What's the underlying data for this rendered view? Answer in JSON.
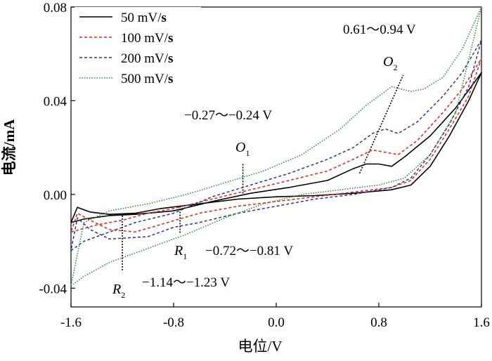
{
  "chart_data": {
    "type": "line",
    "title": "",
    "xlabel": "电位/V",
    "ylabel": "电流/mA",
    "xlim": [
      -1.6,
      1.6
    ],
    "ylim": [
      -0.048,
      0.08
    ],
    "x_ticks": [
      -1.6,
      -0.8,
      0.0,
      0.8,
      1.6
    ],
    "x_tick_labels": [
      "-1.6",
      "-0.8",
      "0.0",
      "0.8",
      "1.6"
    ],
    "y_ticks": [
      -0.04,
      0.0,
      0.04,
      0.08
    ],
    "y_tick_labels": [
      "-0.04",
      "0.00",
      "0.04",
      "0.08"
    ],
    "grid": false,
    "legend_position": "top-left",
    "series": [
      {
        "name": "50 mV/s",
        "color": "#000000",
        "dash": "solid",
        "points": [
          [
            -1.6,
            -0.012
          ],
          [
            -1.5,
            -0.0105
          ],
          [
            -1.3,
            -0.009
          ],
          [
            -1.1,
            -0.0085
          ],
          [
            -0.8,
            -0.007
          ],
          [
            -0.5,
            -0.003
          ],
          [
            -0.2,
            0.0005
          ],
          [
            0.1,
            0.003
          ],
          [
            0.4,
            0.006
          ],
          [
            0.6,
            0.011
          ],
          [
            0.7,
            0.013
          ],
          [
            0.8,
            0.013
          ],
          [
            0.9,
            0.012
          ],
          [
            1.0,
            0.016
          ],
          [
            1.2,
            0.025
          ],
          [
            1.4,
            0.037
          ],
          [
            1.6,
            0.052
          ],
          [
            1.5,
            0.04
          ],
          [
            1.35,
            0.025
          ],
          [
            1.2,
            0.012
          ],
          [
            1.05,
            0.004
          ],
          [
            0.9,
            0.002
          ],
          [
            0.6,
            0.0005
          ],
          [
            0.3,
            -0.0005
          ],
          [
            0.0,
            -0.001
          ],
          [
            -0.3,
            -0.002
          ],
          [
            -0.6,
            -0.004
          ],
          [
            -0.9,
            -0.006
          ],
          [
            -1.1,
            -0.008
          ],
          [
            -1.3,
            -0.0085
          ],
          [
            -1.45,
            -0.0075
          ],
          [
            -1.55,
            -0.0055
          ],
          [
            -1.6,
            -0.012
          ]
        ]
      },
      {
        "name": "100 mV/s",
        "color": "#e8220d",
        "dash": "4,3",
        "points": [
          [
            -1.6,
            -0.016
          ],
          [
            -1.4,
            -0.013
          ],
          [
            -1.2,
            -0.011
          ],
          [
            -1.0,
            -0.008
          ],
          [
            -0.8,
            -0.006
          ],
          [
            -0.5,
            -0.002
          ],
          [
            -0.2,
            0.002
          ],
          [
            0.1,
            0.006
          ],
          [
            0.4,
            0.01
          ],
          [
            0.6,
            0.015
          ],
          [
            0.75,
            0.019
          ],
          [
            0.85,
            0.018
          ],
          [
            0.95,
            0.017
          ],
          [
            1.1,
            0.023
          ],
          [
            1.3,
            0.035
          ],
          [
            1.45,
            0.045
          ],
          [
            1.6,
            0.058
          ],
          [
            1.5,
            0.042
          ],
          [
            1.35,
            0.028
          ],
          [
            1.2,
            0.015
          ],
          [
            1.05,
            0.006
          ],
          [
            0.9,
            0.003
          ],
          [
            0.6,
            0.001
          ],
          [
            0.3,
            -0.001
          ],
          [
            0.0,
            -0.003
          ],
          [
            -0.3,
            -0.005
          ],
          [
            -0.6,
            -0.008
          ],
          [
            -0.85,
            -0.012
          ],
          [
            -1.1,
            -0.016
          ],
          [
            -1.3,
            -0.015
          ],
          [
            -1.45,
            -0.011
          ],
          [
            -1.55,
            -0.008
          ],
          [
            -1.6,
            -0.016
          ]
        ]
      },
      {
        "name": "200 mV/s",
        "color": "#3030a0",
        "dash": "4,3",
        "points": [
          [
            -1.6,
            -0.024
          ],
          [
            -1.5,
            -0.02
          ],
          [
            -1.3,
            -0.016
          ],
          [
            -1.1,
            -0.012
          ],
          [
            -0.8,
            -0.008
          ],
          [
            -0.5,
            -0.001
          ],
          [
            -0.2,
            0.004
          ],
          [
            0.1,
            0.009
          ],
          [
            0.4,
            0.015
          ],
          [
            0.6,
            0.02
          ],
          [
            0.75,
            0.026
          ],
          [
            0.85,
            0.028
          ],
          [
            0.95,
            0.026
          ],
          [
            1.1,
            0.031
          ],
          [
            1.3,
            0.042
          ],
          [
            1.45,
            0.052
          ],
          [
            1.6,
            0.066
          ],
          [
            1.5,
            0.046
          ],
          [
            1.35,
            0.03
          ],
          [
            1.2,
            0.017
          ],
          [
            1.05,
            0.007
          ],
          [
            0.9,
            0.003
          ],
          [
            0.6,
            0.0
          ],
          [
            0.3,
            -0.002
          ],
          [
            0.0,
            -0.005
          ],
          [
            -0.3,
            -0.008
          ],
          [
            -0.6,
            -0.012
          ],
          [
            -0.8,
            -0.014
          ],
          [
            -1.0,
            -0.018
          ],
          [
            -1.3,
            -0.019
          ],
          [
            -1.45,
            -0.015
          ],
          [
            -1.55,
            -0.01
          ],
          [
            -1.6,
            -0.024
          ]
        ]
      },
      {
        "name": "500 mV/s",
        "color": "#1f8f2a",
        "dash": "1.5,2",
        "points": [
          [
            -1.6,
            -0.039
          ],
          [
            -1.5,
            -0.035
          ],
          [
            -1.3,
            -0.029
          ],
          [
            -1.0,
            -0.023
          ],
          [
            -0.7,
            -0.017
          ],
          [
            -0.4,
            -0.01
          ],
          [
            -0.1,
            -0.004
          ],
          [
            0.2,
            0.0
          ],
          [
            0.5,
            0.002
          ],
          [
            0.8,
            0.004
          ],
          [
            1.0,
            0.007
          ],
          [
            1.2,
            0.017
          ],
          [
            1.4,
            0.035
          ],
          [
            1.6,
            0.08
          ],
          [
            1.45,
            0.062
          ],
          [
            1.3,
            0.05
          ],
          [
            1.15,
            0.045
          ],
          [
            1.05,
            0.044
          ],
          [
            0.9,
            0.046
          ],
          [
            0.7,
            0.038
          ],
          [
            0.5,
            0.028
          ],
          [
            0.2,
            0.017
          ],
          [
            -0.1,
            0.01
          ],
          [
            -0.4,
            0.005
          ],
          [
            -0.7,
            0.0
          ],
          [
            -1.0,
            -0.004
          ],
          [
            -1.3,
            -0.007
          ],
          [
            -1.5,
            -0.012
          ],
          [
            -1.6,
            -0.039
          ]
        ]
      }
    ],
    "annotations": [
      {
        "label": "O",
        "sub": "1",
        "range": "−0.27～−0.24 V"
      },
      {
        "label": "O",
        "sub": "2",
        "range": "0.61～0.94 V"
      },
      {
        "label": "R",
        "sub": "1",
        "range": "−0.72～−0.81 V"
      },
      {
        "label": "R",
        "sub": "2",
        "range": "−1.14～−1.23 V"
      }
    ],
    "peak_markers": [
      {
        "from": [
          -0.26,
          0.013
        ],
        "to": [
          -0.26,
          0.0
        ]
      },
      {
        "from": [
          0.65,
          0.009
        ],
        "to": [
          0.99,
          0.051
        ]
      },
      {
        "from": [
          -0.75,
          -0.005
        ],
        "to": [
          -0.75,
          -0.017
        ]
      },
      {
        "from": [
          -1.2,
          -0.009
        ],
        "to": [
          -1.2,
          -0.033
        ]
      }
    ]
  }
}
